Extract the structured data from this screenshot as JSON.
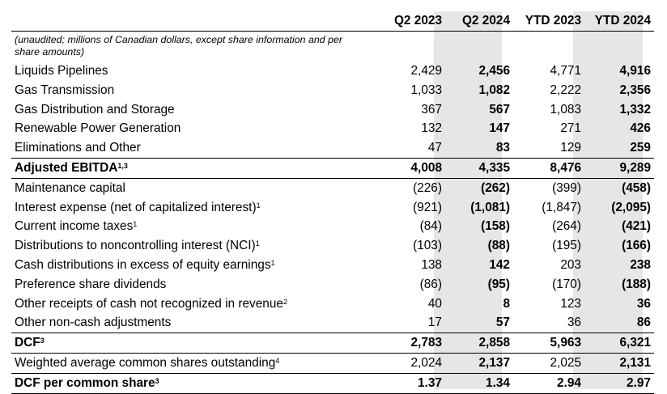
{
  "columns": [
    "Q2 2023",
    "Q2 2024",
    "YTD 2023",
    "YTD 2024"
  ],
  "note": "(unaudited; millions of Canadian dollars, except share information and per share amounts)",
  "rows": [
    {
      "label": "Liquids Pipelines",
      "sup": "",
      "values": [
        "2,429",
        "2,456",
        "4,771",
        "4,916"
      ]
    },
    {
      "label": "Gas Transmission",
      "sup": "",
      "values": [
        "1,033",
        "1,082",
        "2,222",
        "2,356"
      ]
    },
    {
      "label": "Gas Distribution and Storage",
      "sup": "",
      "values": [
        "367",
        "567",
        "1,083",
        "1,332"
      ]
    },
    {
      "label": "Renewable Power Generation",
      "sup": "",
      "values": [
        "132",
        "147",
        "271",
        "426"
      ]
    },
    {
      "label": "Eliminations and Other",
      "sup": "",
      "values": [
        "47",
        "83",
        "129",
        "259"
      ]
    },
    {
      "label": "Adjusted EBITDA",
      "sup": "1,3",
      "values": [
        "4,008",
        "4,335",
        "8,476",
        "9,289"
      ]
    },
    {
      "label": "Maintenance capital",
      "sup": "",
      "values": [
        "(226)",
        "(262)",
        "(399)",
        "(458)"
      ]
    },
    {
      "label": "Interest expense (net of capitalized interest)",
      "sup": "1",
      "values": [
        "(921)",
        "(1,081)",
        "(1,847)",
        "(2,095)"
      ]
    },
    {
      "label": "Current income taxes",
      "sup": "1",
      "values": [
        "(84)",
        "(158)",
        "(264)",
        "(421)"
      ]
    },
    {
      "label": "Distributions to noncontrolling interest (NCI)",
      "sup": "1",
      "values": [
        "(103)",
        "(88)",
        "(195)",
        "(166)"
      ]
    },
    {
      "label": "Cash distributions in excess of equity earnings",
      "sup": "1",
      "values": [
        "138",
        "142",
        "203",
        "238"
      ]
    },
    {
      "label": "Preference share dividends",
      "sup": "",
      "values": [
        "(86)",
        "(95)",
        "(170)",
        "(188)"
      ]
    },
    {
      "label": "Other receipts of cash not recognized in revenue",
      "sup": "2",
      "values": [
        "40",
        "8",
        "123",
        "36"
      ]
    },
    {
      "label": "Other non-cash adjustments",
      "sup": "",
      "values": [
        "17",
        "57",
        "36",
        "86"
      ]
    },
    {
      "label": "DCF",
      "sup": "3",
      "values": [
        "2,783",
        "2,858",
        "5,963",
        "6,321"
      ]
    },
    {
      "label": "Weighted average common shares outstanding",
      "sup": "4",
      "values": [
        "2,024",
        "2,137",
        "2,025",
        "2,131"
      ]
    },
    {
      "label": "DCF per common share",
      "sup": "3",
      "values": [
        "1.37",
        "1.34",
        "2.94",
        "2.97"
      ]
    }
  ]
}
